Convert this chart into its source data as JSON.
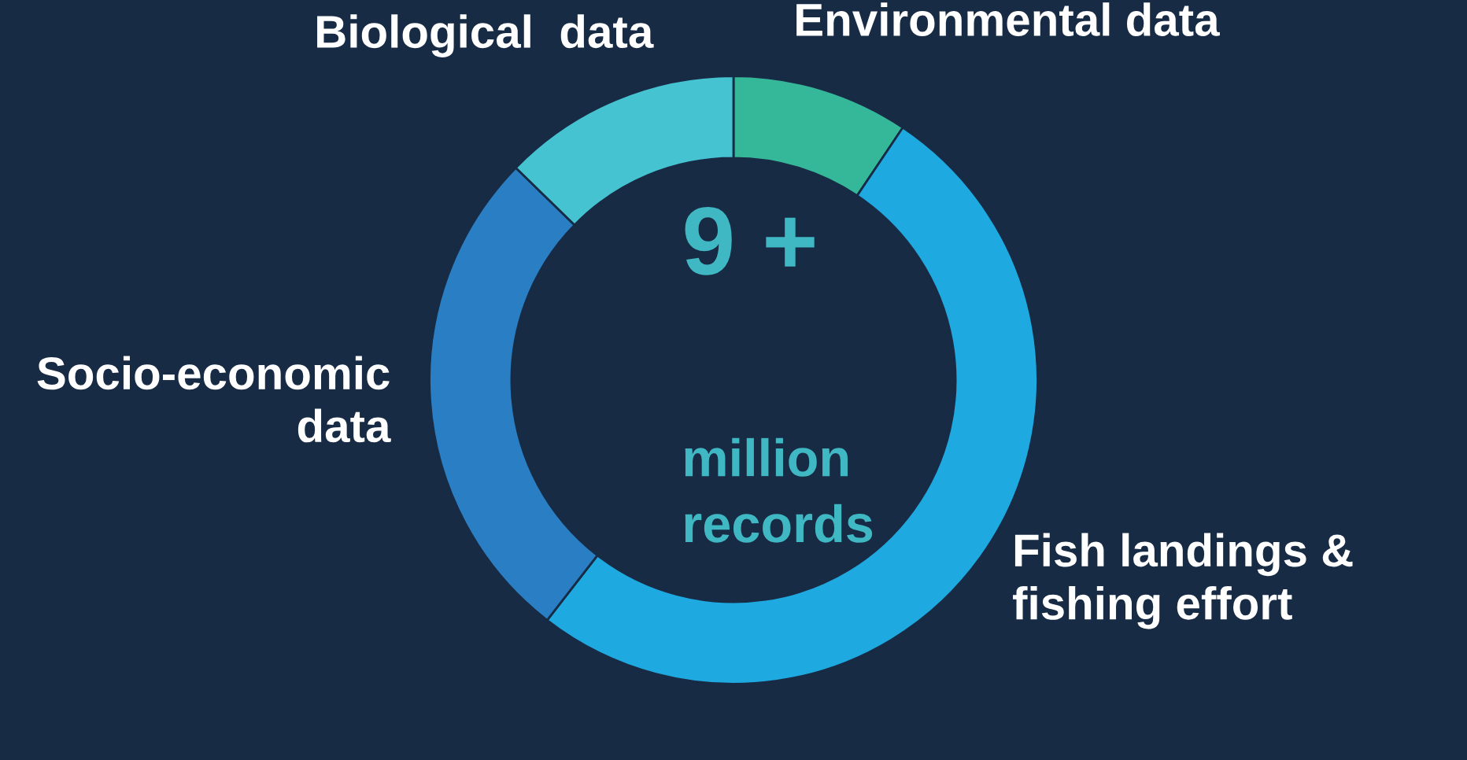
{
  "chart_data": {
    "type": "donut",
    "categories": [
      "Environmental data",
      "Fish landings &\nfishing effort",
      "Socio-economic\ndata",
      "Biological  data"
    ],
    "values": [
      9.4,
      51.1,
      26.8,
      12.7
    ],
    "colors": [
      "#35b899",
      "#1ea9e1",
      "#2a7fc4",
      "#45c3d1"
    ],
    "annotations": [
      "9 +",
      "million\nrecords"
    ],
    "legend": false
  }
}
